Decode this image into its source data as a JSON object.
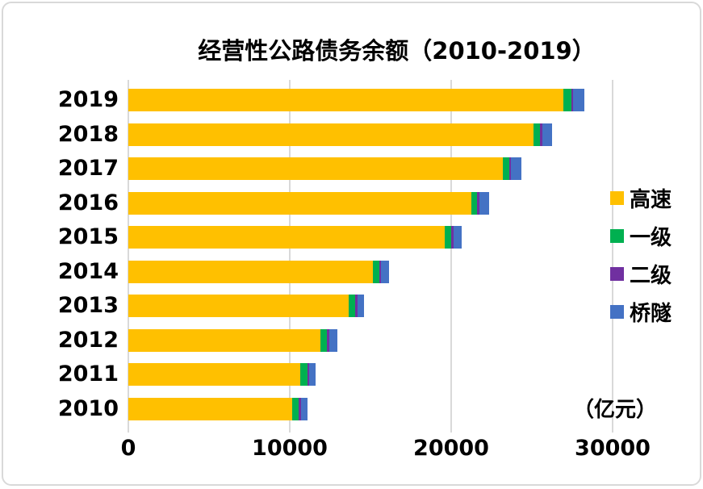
{
  "chart_data": {
    "type": "bar",
    "orientation": "horizontal",
    "stacked": true,
    "title": "经营性公路债务余额（2010-2019）",
    "unit": "（亿元）",
    "categories": [
      "2019",
      "2018",
      "2017",
      "2016",
      "2015",
      "2014",
      "2013",
      "2012",
      "2011",
      "2010"
    ],
    "series": [
      {
        "key": "expressway",
        "name": "高速",
        "color": "#FFC000",
        "values": [
          26950,
          25100,
          23200,
          21250,
          19600,
          15130,
          13640,
          11890,
          10640,
          10140
        ]
      },
      {
        "key": "class1",
        "name": "一级",
        "color": "#00B050",
        "values": [
          500,
          400,
          400,
          370,
          420,
          420,
          420,
          420,
          450,
          420
        ]
      },
      {
        "key": "class2",
        "name": "二级",
        "color": "#7030A0",
        "values": [
          110,
          150,
          100,
          150,
          130,
          120,
          120,
          160,
          130,
          160
        ]
      },
      {
        "key": "bridge_tunnel",
        "name": "桥隧",
        "color": "#4472C4",
        "values": [
          690,
          600,
          630,
          580,
          500,
          500,
          420,
          480,
          370,
          400
        ]
      }
    ],
    "totals": [
      28250,
      26250,
      24330,
      22350,
      20650,
      16170,
      14600,
      12950,
      11590,
      11120
    ],
    "x_ticks": [
      0,
      10000,
      20000,
      30000
    ],
    "x_tick_labels": [
      "0",
      "10000",
      "20000",
      "30000"
    ],
    "xlim": [
      0,
      30900
    ],
    "grid": true,
    "legend_position": "right",
    "gridline_color": "#D9D9D9",
    "text_color": "#000000",
    "background_color": "#FFFFFF"
  }
}
